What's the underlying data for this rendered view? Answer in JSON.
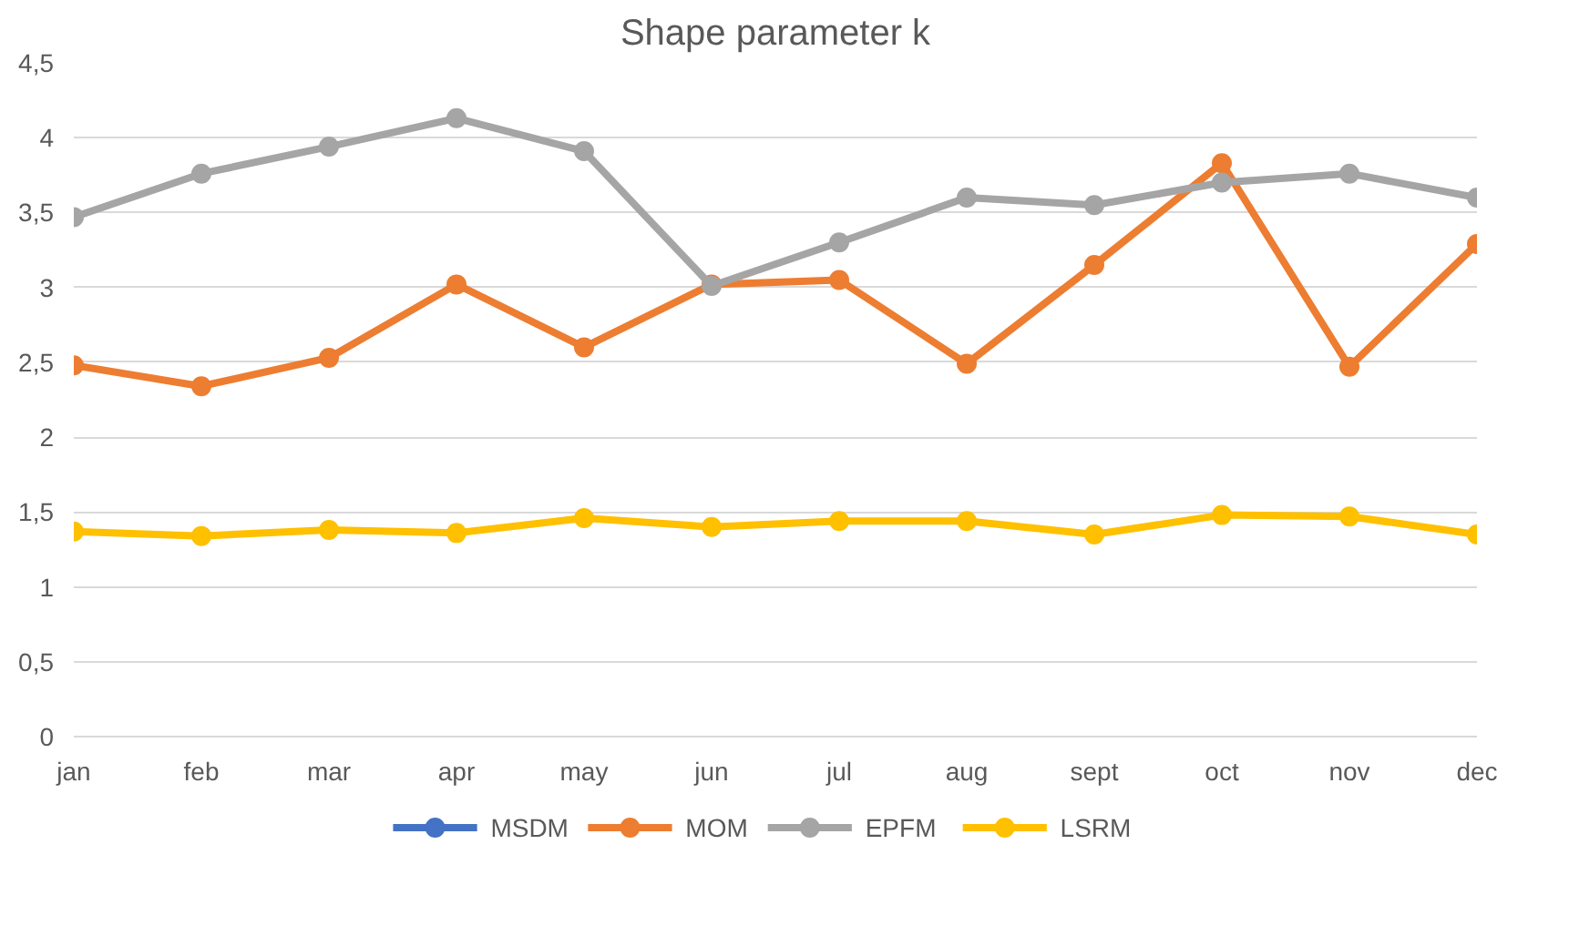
{
  "chart_data": {
    "type": "line",
    "title": "Shape parameter k",
    "categories": [
      "jan",
      "feb",
      "mar",
      "apr",
      "may",
      "jun",
      "jul",
      "aug",
      "sept",
      "oct",
      "nov",
      "dec"
    ],
    "series": [
      {
        "name": "MSDM",
        "color": "#4472c4",
        "values": [
          null,
          null,
          null,
          null,
          null,
          null,
          null,
          null,
          null,
          null,
          null,
          null
        ]
      },
      {
        "name": "MOM",
        "color": "#ed7d31",
        "values": [
          2.48,
          2.34,
          2.53,
          3.02,
          2.6,
          3.02,
          3.05,
          2.49,
          3.15,
          3.83,
          2.47,
          3.29
        ]
      },
      {
        "name": "EPFM",
        "color": "#a5a5a5",
        "values": [
          3.47,
          3.76,
          3.94,
          4.13,
          3.91,
          3.01,
          3.3,
          3.6,
          3.55,
          3.7,
          3.76,
          3.6
        ]
      },
      {
        "name": "LSRM",
        "color": "#ffc000",
        "values": [
          1.37,
          1.34,
          1.38,
          1.36,
          1.46,
          1.4,
          1.44,
          1.44,
          1.35,
          1.48,
          1.47,
          1.35
        ]
      }
    ],
    "ylim": [
      0,
      4.5
    ],
    "yticks": [
      0,
      {
        "value": 0.5,
        "label": "0,5"
      },
      1,
      {
        "value": 1.5,
        "label": "1,5"
      },
      2,
      {
        "value": 2.5,
        "label": "2,5"
      },
      3,
      {
        "value": 3.5,
        "label": "3,5"
      },
      4,
      {
        "value": 4.5,
        "label": "4,5"
      }
    ],
    "grid": "y",
    "legend": "bottom",
    "marker": "circle",
    "line_style": "solid"
  }
}
